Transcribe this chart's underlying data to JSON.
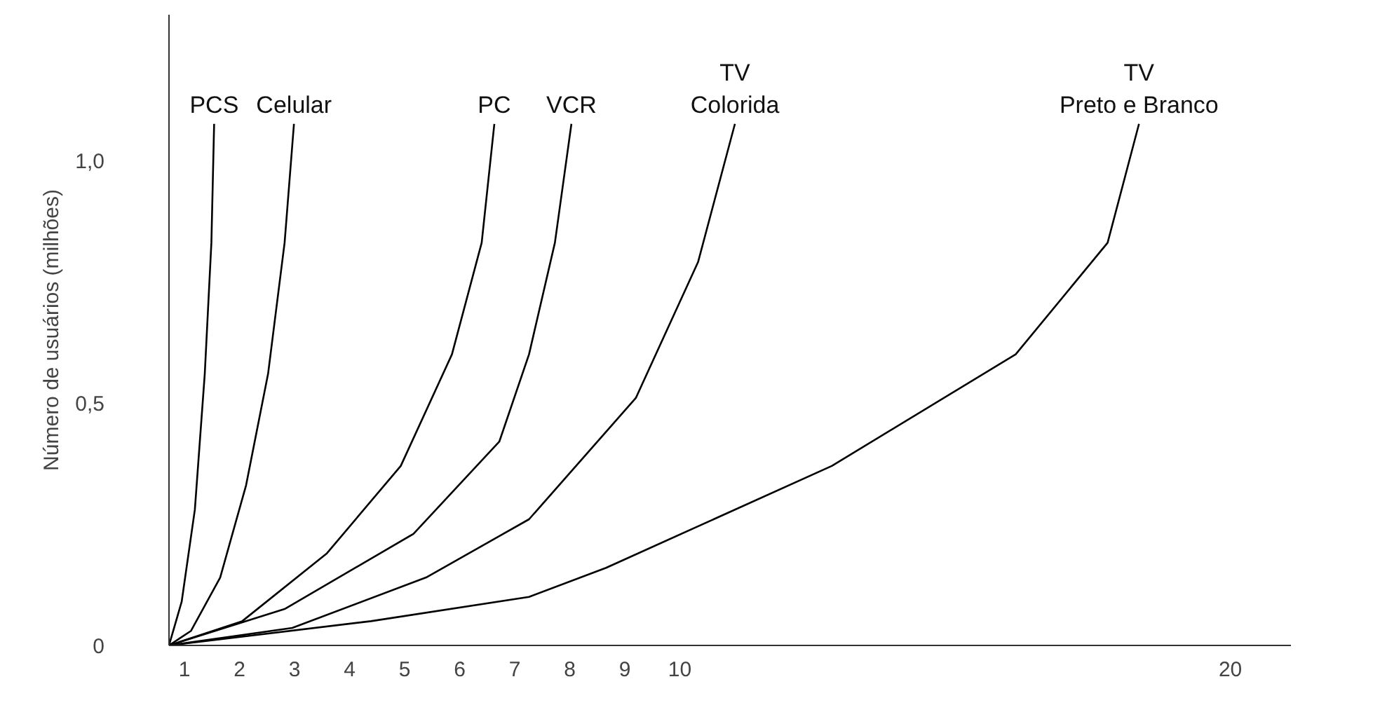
{
  "chart_data": {
    "type": "line",
    "ylabel": "Número de usuários (milhões)",
    "xlim": [
      0.72,
      21.1
    ],
    "ylim": [
      0,
      1.3
    ],
    "xticks": [
      1,
      2,
      3,
      4,
      5,
      6,
      7,
      8,
      9,
      10,
      20
    ],
    "yticks": [
      0,
      {
        "value": 0.5,
        "label": "0,5"
      },
      {
        "value": 1.0,
        "label": "1,0"
      }
    ],
    "series": [
      {
        "name": "PCS",
        "color": "#000000",
        "x": [
          0.72,
          0.95,
          1.19,
          1.37,
          1.49,
          1.54
        ],
        "values": [
          0,
          0.09,
          0.28,
          0.56,
          0.83,
          1.075
        ]
      },
      {
        "name": "Celular",
        "color": "#000000",
        "x": [
          0.72,
          1.12,
          1.65,
          2.12,
          2.52,
          2.82,
          2.99
        ],
        "values": [
          0,
          0.03,
          0.14,
          0.33,
          0.56,
          0.83,
          1.075
        ]
      },
      {
        "name": "PC",
        "color": "#000000",
        "x": [
          0.72,
          2.05,
          3.59,
          4.93,
          5.86,
          6.4,
          6.63
        ],
        "values": [
          0,
          0.05,
          0.19,
          0.37,
          0.6,
          0.83,
          1.075
        ]
      },
      {
        "name": "VCR",
        "color": "#000000",
        "x": [
          0.72,
          2.82,
          5.16,
          6.72,
          7.26,
          7.73,
          8.03
        ],
        "values": [
          0,
          0.075,
          0.23,
          0.42,
          0.6,
          0.83,
          1.075
        ]
      },
      {
        "name": "TV\nColorida",
        "color": "#000000",
        "x": [
          0.72,
          2.96,
          5.39,
          7.26,
          9.2,
          10.33,
          11.0
        ],
        "values": [
          0,
          0.036,
          0.14,
          0.26,
          0.51,
          0.79,
          1.075
        ]
      },
      {
        "name": "TV\nPreto e Branco",
        "color": "#000000",
        "x": [
          0.72,
          4.39,
          7.26,
          8.66,
          12.76,
          16.1,
          17.77,
          18.34
        ],
        "values": [
          0,
          0.05,
          0.1,
          0.16,
          0.37,
          0.6,
          0.83,
          1.075
        ]
      }
    ],
    "marker": "none",
    "line_style": "solid"
  }
}
